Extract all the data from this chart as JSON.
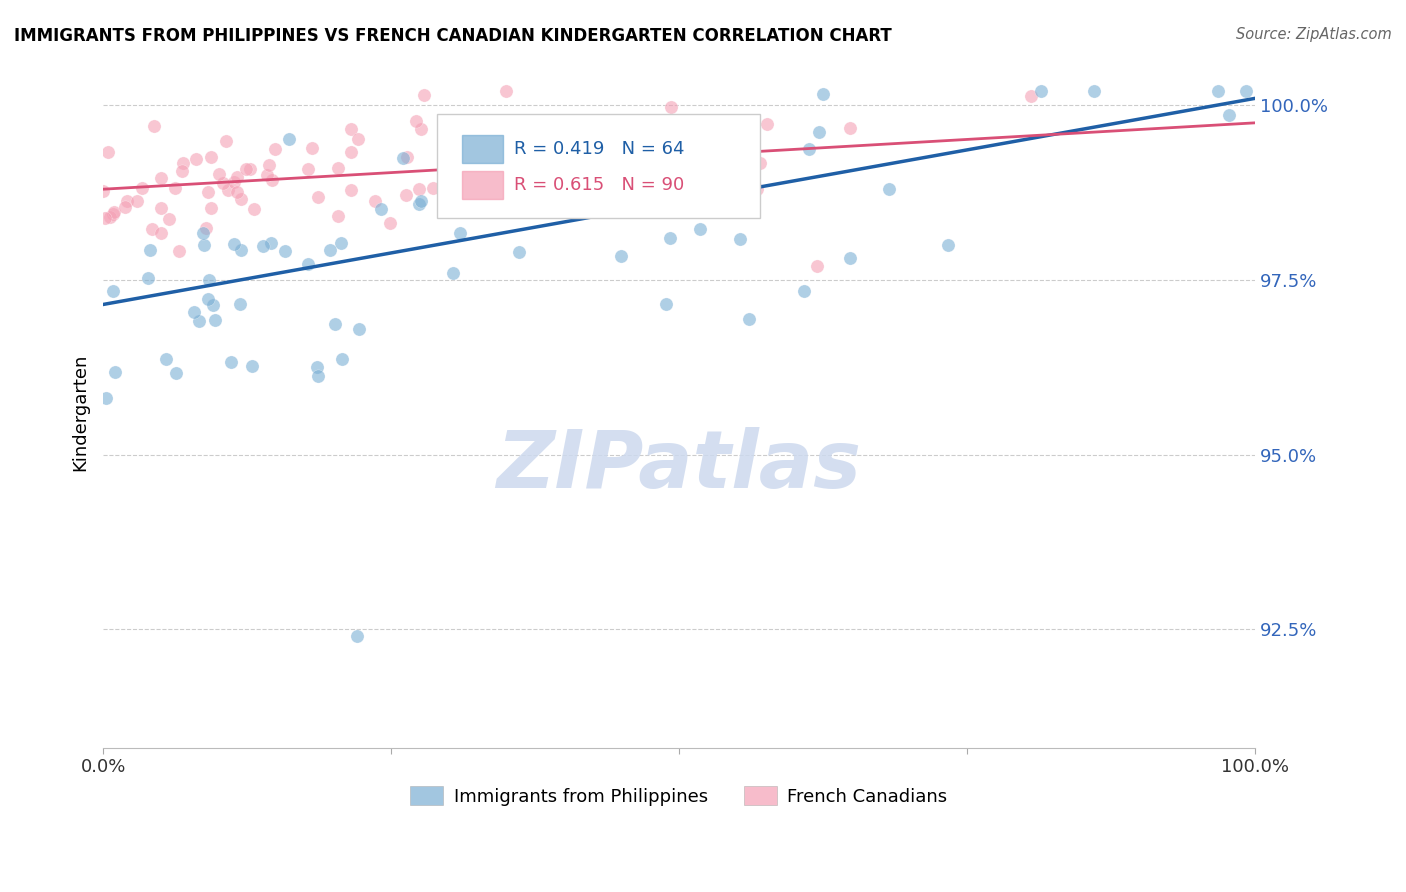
{
  "title": "IMMIGRANTS FROM PHILIPPINES VS FRENCH CANADIAN KINDERGARTEN CORRELATION CHART",
  "source": "Source: ZipAtlas.com",
  "ylabel": "Kindergarten",
  "xlim": [
    0.0,
    1.0
  ],
  "ylim": [
    0.908,
    1.004
  ],
  "yticks": [
    0.925,
    0.95,
    0.975,
    1.0
  ],
  "ytick_labels": [
    "92.5%",
    "95.0%",
    "97.5%",
    "100.0%"
  ],
  "blue_R": 0.419,
  "blue_N": 64,
  "pink_R": 0.615,
  "pink_N": 90,
  "blue_color": "#7BAfd4",
  "pink_color": "#F4A0B5",
  "blue_line_color": "#1F5FA6",
  "pink_line_color": "#D94F76",
  "legend_label_blue": "Immigrants from Philippines",
  "legend_label_pink": "French Canadians",
  "blue_line_x0": 0.0,
  "blue_line_y0": 0.9715,
  "blue_line_x1": 1.0,
  "blue_line_y1": 1.001,
  "pink_line_x0": 0.0,
  "pink_line_y0": 0.988,
  "pink_line_x1": 1.0,
  "pink_line_y1": 0.9975
}
